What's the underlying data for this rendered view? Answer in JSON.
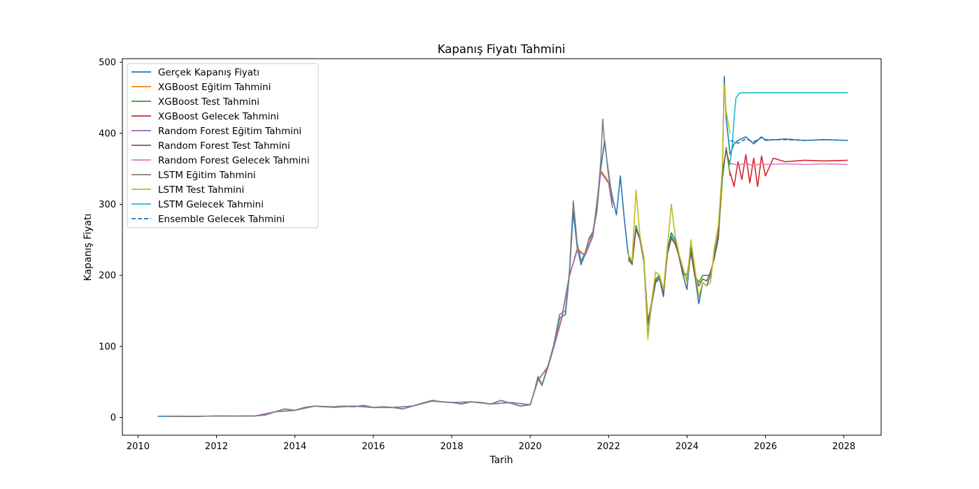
{
  "chart_data": {
    "type": "line",
    "title": "Kapanış Fiyatı Tahmini",
    "xlabel": "Tarih",
    "ylabel": "Kapanış Fiyatı",
    "xlim": [
      2009.6,
      2028.95
    ],
    "ylim": [
      -25,
      505
    ],
    "x_ticks": [
      2010,
      2012,
      2014,
      2016,
      2018,
      2020,
      2022,
      2024,
      2026,
      2028
    ],
    "y_ticks": [
      0,
      100,
      200,
      300,
      400,
      500
    ],
    "grid": false,
    "legend_position": "upper-left",
    "series": [
      {
        "name": "Gerçek Kapanış Fiyatı",
        "color": "#1f77b4",
        "style": "solid",
        "x": [
          2010.5,
          2011.0,
          2011.5,
          2012.0,
          2012.5,
          2013.0,
          2013.25,
          2013.5,
          2013.75,
          2014.0,
          2014.25,
          2014.5,
          2014.75,
          2015.0,
          2015.25,
          2015.5,
          2015.75,
          2016.0,
          2016.25,
          2016.5,
          2016.75,
          2017.0,
          2017.25,
          2017.5,
          2017.75,
          2018.0,
          2018.25,
          2018.5,
          2018.75,
          2019.0,
          2019.25,
          2019.5,
          2019.75,
          2020.0,
          2020.1,
          2020.2,
          2020.3,
          2020.45,
          2020.6,
          2020.75,
          2020.9,
          2021.0,
          2021.1,
          2021.2,
          2021.3,
          2021.4,
          2021.5,
          2021.6,
          2021.7,
          2021.8,
          2021.9,
          2022.0,
          2022.1,
          2022.2,
          2022.3,
          2022.4,
          2022.5,
          2022.6,
          2022.7,
          2022.8,
          2022.9,
          2023.0,
          2023.1,
          2023.2,
          2023.3,
          2023.4,
          2023.5,
          2023.6,
          2023.7,
          2023.8,
          2023.9,
          2024.0,
          2024.1,
          2024.2,
          2024.3,
          2024.4,
          2024.5,
          2024.6,
          2024.7,
          2024.8,
          2024.9,
          2024.95,
          2025.0,
          2025.1,
          2025.2,
          2025.3,
          2025.5,
          2025.7,
          2025.9,
          2026.0,
          2026.5,
          2027.0,
          2027.5,
          2028.1
        ],
        "y": [
          1.5,
          1.8,
          1.5,
          2.0,
          1.8,
          2.2,
          3.5,
          8,
          12,
          10,
          14,
          16,
          15,
          15,
          16,
          15,
          17,
          14,
          15,
          14,
          12,
          16,
          20,
          24,
          22,
          21,
          19,
          22,
          21,
          19,
          24,
          20,
          16,
          18,
          35,
          55,
          45,
          70,
          100,
          140,
          145,
          200,
          290,
          240,
          215,
          230,
          250,
          260,
          290,
          350,
          390,
          340,
          310,
          285,
          340,
          280,
          230,
          215,
          270,
          250,
          220,
          115,
          160,
          190,
          195,
          170,
          235,
          260,
          250,
          225,
          200,
          180,
          240,
          200,
          160,
          190,
          185,
          200,
          230,
          260,
          340,
          480,
          420,
          370,
          385,
          390,
          395,
          385,
          395,
          390,
          392,
          390,
          391,
          390
        ]
      },
      {
        "name": "XGBoost Eğitim Tahmini",
        "color": "#ff7f0e",
        "style": "solid",
        "x": [
          2010.8,
          2011.5,
          2012.0,
          2012.5,
          2013.0,
          2013.5,
          2014.0,
          2014.5,
          2015.0,
          2015.5,
          2016.0,
          2016.5,
          2017.0,
          2017.5,
          2018.0,
          2018.5,
          2019.0,
          2019.5,
          2020.0,
          2020.2,
          2020.45,
          2020.6,
          2020.8,
          2021.0,
          2021.2,
          2021.4,
          2021.6,
          2021.8,
          2022.0,
          2022.1
        ],
        "y": [
          1.5,
          1.5,
          2.0,
          1.8,
          2.2,
          8,
          10,
          16,
          14,
          16,
          14,
          14,
          16,
          23,
          21,
          22,
          19,
          21,
          18,
          52,
          72,
          100,
          140,
          198,
          238,
          228,
          258,
          348,
          332,
          300
        ]
      },
      {
        "name": "XGBoost Test Tahmini",
        "color": "#2ca02c",
        "style": "solid",
        "x": [
          2022.5,
          2022.6,
          2022.7,
          2022.8,
          2022.9,
          2023.0,
          2023.1,
          2023.2,
          2023.3,
          2023.4,
          2023.5,
          2023.6,
          2023.7,
          2023.8,
          2023.9,
          2024.0,
          2024.1,
          2024.2,
          2024.3,
          2024.4,
          2024.5,
          2024.6,
          2024.7,
          2024.8,
          2024.9,
          2025.0,
          2025.1
        ],
        "y": [
          225,
          218,
          268,
          252,
          222,
          130,
          165,
          195,
          200,
          178,
          232,
          255,
          245,
          228,
          205,
          200,
          235,
          200,
          190,
          200,
          200,
          200,
          228,
          255,
          335,
          380,
          340
        ]
      },
      {
        "name": "XGBoost Gelecek Tahmini",
        "color": "#d62728",
        "style": "solid",
        "x": [
          2025.1,
          2025.2,
          2025.3,
          2025.4,
          2025.5,
          2025.6,
          2025.7,
          2025.8,
          2025.9,
          2026.0,
          2026.2,
          2026.5,
          2027.0,
          2027.5,
          2028.1
        ],
        "y": [
          345,
          325,
          360,
          335,
          370,
          330,
          365,
          325,
          368,
          340,
          365,
          360,
          362,
          361,
          362
        ]
      },
      {
        "name": "Random Forest Eğitim Tahmini",
        "color": "#9467bd",
        "style": "solid",
        "x": [
          2010.8,
          2011.5,
          2012.0,
          2012.5,
          2013.0,
          2013.5,
          2014.0,
          2014.5,
          2015.0,
          2015.5,
          2016.0,
          2016.5,
          2017.0,
          2017.5,
          2018.0,
          2018.5,
          2019.0,
          2019.5,
          2020.0,
          2020.2,
          2020.45,
          2020.6,
          2020.8,
          2021.0,
          2021.2,
          2021.4,
          2021.6,
          2021.8,
          2022.0,
          2022.1
        ],
        "y": [
          1.6,
          1.5,
          2.0,
          1.8,
          2.2,
          8,
          10,
          16,
          15,
          16,
          14,
          14,
          16,
          23,
          21,
          22,
          19,
          21,
          18,
          53,
          70,
          98,
          138,
          200,
          235,
          228,
          255,
          345,
          330,
          295
        ]
      },
      {
        "name": "Random Forest Test Tahmini",
        "color": "#8c564b",
        "style": "solid",
        "x": [
          2022.5,
          2022.6,
          2022.7,
          2022.8,
          2022.9,
          2023.0,
          2023.1,
          2023.2,
          2023.3,
          2023.4,
          2023.5,
          2023.6,
          2023.7,
          2023.8,
          2023.9,
          2024.0,
          2024.1,
          2024.2,
          2024.3,
          2024.4,
          2024.5,
          2024.6,
          2024.7,
          2024.8,
          2024.9,
          2025.0,
          2025.1
        ],
        "y": [
          222,
          216,
          265,
          250,
          220,
          135,
          162,
          192,
          198,
          175,
          230,
          252,
          244,
          226,
          203,
          195,
          232,
          198,
          185,
          195,
          192,
          205,
          225,
          252,
          345,
          375,
          355
        ]
      },
      {
        "name": "Random Forest Gelecek Tahmini",
        "color": "#e377c2",
        "style": "solid",
        "x": [
          2025.1,
          2025.3,
          2025.5,
          2025.7,
          2025.9,
          2026.0,
          2026.5,
          2027.0,
          2027.5,
          2028.1
        ],
        "y": [
          358,
          355,
          358,
          354,
          358,
          356,
          357,
          356,
          357,
          356
        ]
      },
      {
        "name": "LSTM Eğitim Tahmini",
        "color": "#7f7f7f",
        "style": "solid",
        "x": [
          2010.8,
          2011.5,
          2012.0,
          2012.5,
          2013.0,
          2013.25,
          2013.5,
          2013.75,
          2014.0,
          2014.25,
          2014.5,
          2014.75,
          2015.0,
          2015.25,
          2015.5,
          2015.75,
          2016.0,
          2016.25,
          2016.5,
          2016.75,
          2017.0,
          2017.25,
          2017.5,
          2017.75,
          2018.0,
          2018.25,
          2018.5,
          2018.75,
          2019.0,
          2019.25,
          2019.5,
          2019.75,
          2020.0,
          2020.1,
          2020.2,
          2020.3,
          2020.45,
          2020.6,
          2020.75,
          2020.9,
          2021.0,
          2021.1,
          2021.2,
          2021.3,
          2021.4,
          2021.5,
          2021.6,
          2021.7,
          2021.8,
          2021.85,
          2021.9,
          2022.0,
          2022.1
        ],
        "y": [
          1.5,
          1.6,
          2.0,
          1.8,
          2.2,
          3.5,
          8,
          12,
          10,
          14,
          16,
          15,
          15,
          16,
          15,
          17,
          14,
          15,
          14,
          12,
          16,
          20,
          24,
          22,
          21,
          19,
          22,
          21,
          19,
          24,
          20,
          16,
          18,
          36,
          58,
          46,
          72,
          102,
          145,
          150,
          205,
          305,
          245,
          220,
          232,
          252,
          262,
          295,
          360,
          420,
          385,
          345,
          305
        ]
      },
      {
        "name": "LSTM Test Tahmini",
        "color": "#bcbd22",
        "style": "solid",
        "x": [
          2022.5,
          2022.6,
          2022.7,
          2022.8,
          2022.9,
          2023.0,
          2023.1,
          2023.2,
          2023.3,
          2023.4,
          2023.5,
          2023.6,
          2023.7,
          2023.8,
          2023.9,
          2024.0,
          2024.1,
          2024.2,
          2024.3,
          2024.4,
          2024.5,
          2024.6,
          2024.7,
          2024.8,
          2024.9,
          2024.95,
          2025.0,
          2025.1
        ],
        "y": [
          230,
          220,
          320,
          255,
          225,
          110,
          165,
          205,
          200,
          180,
          240,
          300,
          255,
          230,
          210,
          190,
          250,
          210,
          170,
          190,
          185,
          190,
          240,
          270,
          350,
          470,
          430,
          400
        ]
      },
      {
        "name": "LSTM Gelecek Tahmini",
        "color": "#17becf",
        "style": "solid",
        "x": [
          2025.1,
          2025.15,
          2025.2,
          2025.25,
          2025.35,
          2025.5,
          2026.0,
          2027.0,
          2028.1
        ],
        "y": [
          360,
          380,
          420,
          450,
          457,
          457,
          457,
          457,
          457
        ]
      },
      {
        "name": "Ensemble Gelecek Tahmini",
        "color": "#1f77b4",
        "style": "dashed",
        "x": [
          2025.1,
          2025.3,
          2025.5,
          2025.7,
          2025.9,
          2026.0,
          2026.5,
          2027.0,
          2027.5,
          2028.1
        ],
        "y": [
          390,
          386,
          392,
          388,
          394,
          391,
          391,
          390,
          391,
          390
        ]
      }
    ]
  }
}
